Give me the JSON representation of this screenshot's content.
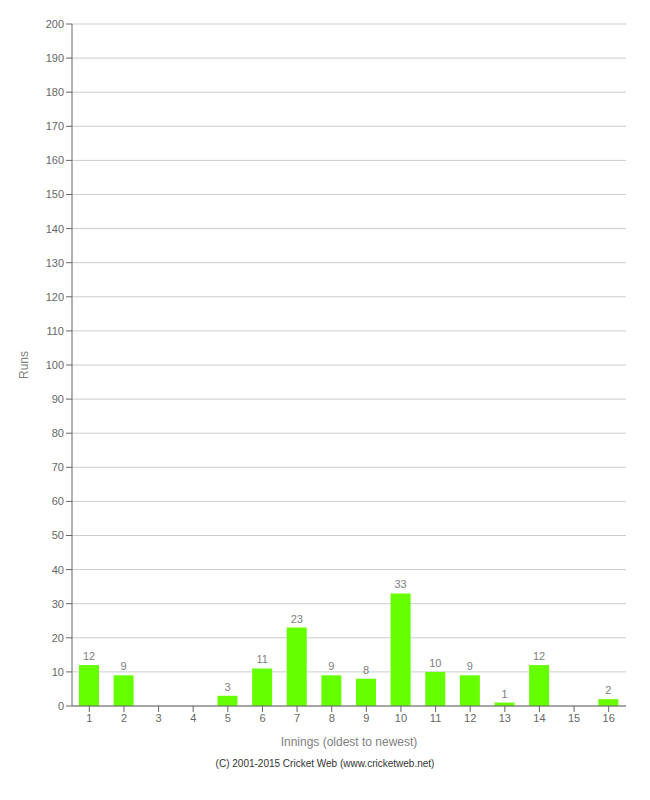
{
  "chart_data": {
    "type": "bar",
    "xlabel": "Innings (oldest to newest)",
    "ylabel": "Runs",
    "categories": [
      "1",
      "2",
      "3",
      "4",
      "5",
      "6",
      "7",
      "8",
      "9",
      "10",
      "11",
      "12",
      "13",
      "14",
      "15",
      "16"
    ],
    "values": [
      12,
      9,
      0,
      0,
      3,
      11,
      23,
      9,
      8,
      33,
      10,
      9,
      1,
      12,
      0,
      2
    ],
    "color": "#66ff00",
    "ylim": [
      0,
      200
    ],
    "yticks": [
      0,
      10,
      20,
      30,
      40,
      50,
      60,
      70,
      80,
      90,
      100,
      110,
      120,
      130,
      140,
      150,
      160,
      170,
      180,
      190,
      200
    ],
    "grid": true,
    "data_labels": true,
    "annotations": [
      "(C) 2001-2015 Cricket Web (www.cricketweb.net)"
    ]
  }
}
